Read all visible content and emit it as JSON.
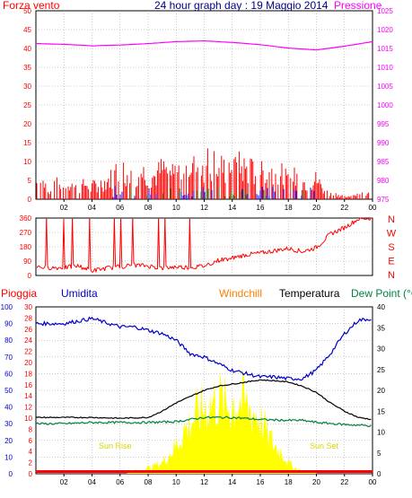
{
  "colors": {
    "wind": "#ff0000",
    "pressure": "#ff00ff",
    "title": "#000080",
    "direction": "#ff0000",
    "rain": "#ff0000",
    "humidity": "#0000c8",
    "windchill": "#ff8000",
    "temperature": "#000000",
    "dewpoint": "#008040",
    "sun": "#ffff00",
    "sunlabel": "#d8d800",
    "grid": "#999999",
    "gust_blue": "#0000ff",
    "gust_green": "#008000"
  },
  "header": {
    "title": "24 hour graph day : 19 Maggio 2014",
    "left_label": "Forza vento",
    "right_label": "Pressione"
  },
  "labels": {
    "pioggia": "Pioggia",
    "umidita": "Umidita",
    "windchill": "Windchill",
    "temperatura": "Temperatura",
    "dewpoint": "Dew Point (°C",
    "sunrise": "Sun Rise",
    "sunset": "Sun Set"
  },
  "chart_data": [
    {
      "type": "bar",
      "title": "24 hour graph day : 19 Maggio 2014",
      "xlabel": "",
      "x_ticks": [
        "02",
        "04",
        "06",
        "08",
        "10",
        "12",
        "14",
        "16",
        "18",
        "20",
        "22",
        "00"
      ],
      "ylabel": "Forza vento",
      "y_ticks": [
        0,
        5,
        10,
        15,
        20,
        25,
        30,
        35,
        40,
        45,
        50
      ],
      "ylim": [
        0,
        50
      ],
      "y2label": "Pressione",
      "y2_ticks": [
        975,
        980,
        985,
        990,
        995,
        1000,
        1005,
        1010,
        1015,
        1020,
        1025
      ],
      "y2lim": [
        975,
        1025
      ],
      "grid": true,
      "series": [
        {
          "name": "Forza vento",
          "hours": [
            0,
            0.5,
            1,
            1.5,
            2,
            2.5,
            3,
            3.5,
            4,
            4.5,
            5,
            5.5,
            6,
            6.5,
            7,
            7.5,
            8,
            8.5,
            9,
            9.5,
            10,
            10.5,
            11,
            11.5,
            12,
            12.5,
            13,
            13.5,
            14,
            14.5,
            15,
            15.5,
            16,
            16.5,
            17,
            17.5,
            18,
            18.5,
            19,
            19.5,
            20,
            20.5,
            21,
            21.5,
            22,
            22.5,
            23,
            23.5
          ],
          "values": [
            6,
            7,
            3,
            6,
            5,
            7,
            4,
            6,
            5,
            6,
            7,
            9,
            12,
            10,
            8,
            11,
            10,
            9,
            12,
            11,
            11,
            13,
            14,
            12,
            14,
            15,
            13,
            12,
            15,
            13,
            12,
            11,
            12,
            10,
            11,
            10,
            7,
            9,
            7,
            6,
            8,
            4,
            2,
            2,
            1,
            1,
            3,
            2
          ]
        },
        {
          "name": "Pressione",
          "hours": [
            0,
            2,
            4,
            6,
            8,
            10,
            12,
            14,
            16,
            18,
            20,
            22,
            24
          ],
          "values": [
            1016.3,
            1016.1,
            1015.7,
            1015.9,
            1016.3,
            1016.8,
            1017.0,
            1016.6,
            1016.0,
            1015.1,
            1014.6,
            1015.6,
            1016.8
          ]
        }
      ]
    },
    {
      "type": "scatter",
      "title": "",
      "x_ticks": [
        "02",
        "04",
        "06",
        "08",
        "10",
        "12",
        "14",
        "16",
        "18",
        "20",
        "22",
        "00"
      ],
      "y_ticks": [
        0,
        90,
        180,
        270,
        360
      ],
      "ylim": [
        0,
        360
      ],
      "y2_labels": [
        "N",
        "W",
        "S",
        "E",
        "N"
      ],
      "grid": true,
      "series": [
        {
          "name": "",
          "hours": [
            0,
            1,
            2,
            3,
            4,
            5,
            6,
            7,
            8,
            9,
            10,
            11,
            12,
            13,
            14,
            15,
            16,
            17,
            18,
            19,
            20,
            21,
            22,
            23,
            24
          ],
          "values": [
            55,
            50,
            48,
            60,
            30,
            45,
            55,
            65,
            60,
            45,
            55,
            50,
            60,
            95,
            110,
            130,
            140,
            155,
            170,
            150,
            175,
            260,
            300,
            355,
            360
          ]
        }
      ]
    },
    {
      "type": "line",
      "title": "",
      "x_ticks": [
        "02",
        "04",
        "06",
        "08",
        "10",
        "12",
        "14",
        "16",
        "18",
        "20",
        "22",
        "00"
      ],
      "y_ticks_humidity": [
        0,
        10,
        20,
        30,
        40,
        50,
        60,
        70,
        80,
        90,
        100
      ],
      "y_ticks_rain": [
        0,
        2,
        4,
        6,
        8,
        10,
        12,
        14,
        16,
        18,
        20,
        22,
        24,
        26,
        28,
        30
      ],
      "y_ticks_temp": [
        0,
        5,
        10,
        15,
        20,
        25,
        30,
        35,
        40
      ],
      "ylim_temp": [
        0,
        40
      ],
      "grid": true,
      "annotations": [
        "Sun Rise",
        "Sun Set"
      ],
      "series": [
        {
          "name": "Umidita",
          "hours": [
            0,
            2,
            4,
            6,
            7,
            8,
            9,
            10,
            11,
            12,
            13,
            14,
            15,
            16,
            17,
            18,
            19,
            20,
            21,
            22,
            23,
            24
          ],
          "values": [
            90,
            90,
            93,
            88,
            88,
            86,
            84,
            80,
            72,
            70,
            66,
            62,
            60,
            58,
            58,
            57,
            57,
            62,
            72,
            84,
            92,
            93
          ]
        },
        {
          "name": "Temperatura",
          "hours": [
            0,
            2,
            4,
            6,
            8,
            9,
            10,
            11,
            12,
            13,
            14,
            15,
            16,
            17,
            18,
            19,
            20,
            21,
            22,
            23,
            24
          ],
          "values": [
            13.5,
            13.5,
            13.5,
            13.3,
            13.5,
            15,
            17,
            18.5,
            20,
            21,
            21.5,
            22,
            22.5,
            22.3,
            22,
            21,
            19.5,
            17,
            15,
            13.5,
            13
          ]
        },
        {
          "name": "Dew Point",
          "hours": [
            0,
            2,
            4,
            6,
            8,
            10,
            12,
            14,
            16,
            18,
            19,
            20,
            22,
            24
          ],
          "values": [
            12,
            12,
            12.3,
            12.3,
            12.3,
            12.5,
            13.5,
            13.5,
            13,
            12.8,
            12.8,
            12.3,
            11.8,
            11.5
          ]
        },
        {
          "name": "Windchill",
          "hours": [
            0,
            24
          ],
          "values": [
            0,
            0
          ]
        },
        {
          "name": "Pioggia",
          "hours": [
            0,
            24
          ],
          "values": [
            0,
            0
          ]
        },
        {
          "name": "Sun",
          "hours": [
            6.5,
            8,
            9,
            10,
            10.5,
            11,
            11.5,
            12,
            12.5,
            13,
            13.5,
            14,
            14.5,
            15,
            15.5,
            16,
            16.5,
            17,
            17.5,
            18,
            18.5,
            19,
            20
          ],
          "values": [
            0.5,
            2,
            4,
            10,
            15,
            18,
            21,
            24,
            25,
            27,
            24,
            25,
            26,
            24,
            22,
            20,
            14,
            10,
            8,
            4,
            2,
            1,
            0.5
          ]
        }
      ]
    }
  ]
}
